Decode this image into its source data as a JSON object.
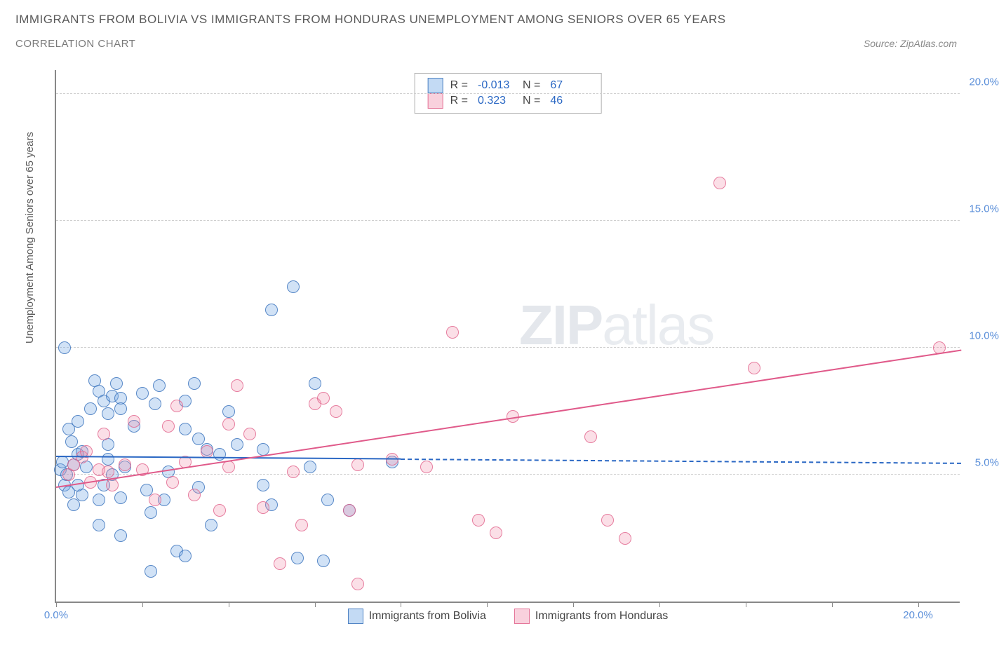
{
  "header": {
    "title": "IMMIGRANTS FROM BOLIVIA VS IMMIGRANTS FROM HONDURAS UNEMPLOYMENT AMONG SENIORS OVER 65 YEARS",
    "subtitle": "CORRELATION CHART",
    "source": "Source: ZipAtlas.com"
  },
  "chart": {
    "type": "scatter",
    "ylabel": "Unemployment Among Seniors over 65 years",
    "xlim": [
      0,
      21
    ],
    "ylim": [
      0,
      21
    ],
    "xticks_major": [
      0,
      2,
      4,
      6,
      8,
      10,
      12,
      14,
      16,
      18,
      20
    ],
    "xticks_labeled": [
      {
        "v": 0,
        "t": "0.0%"
      },
      {
        "v": 20,
        "t": "20.0%"
      }
    ],
    "yticks": [
      {
        "v": 5,
        "t": "5.0%"
      },
      {
        "v": 10,
        "t": "10.0%"
      },
      {
        "v": 15,
        "t": "15.0%"
      },
      {
        "v": 20,
        "t": "20.0%"
      }
    ],
    "grid_levels": [
      5,
      10,
      15,
      20
    ],
    "background_color": "#ffffff",
    "grid_color": "#cfcfcf",
    "axis_color": "#888888",
    "legend": {
      "rows": [
        {
          "swatch": "blue",
          "r_label": "R =",
          "r_value": "-0.013",
          "n_label": "N =",
          "n_value": "67"
        },
        {
          "swatch": "pink",
          "r_label": "R =",
          "r_value": "0.323",
          "n_label": "N =",
          "n_value": "46"
        }
      ]
    },
    "bottom_legend": [
      {
        "swatch": "blue",
        "label": "Immigrants from Bolivia"
      },
      {
        "swatch": "pink",
        "label": "Immigrants from Honduras"
      }
    ],
    "watermark": {
      "bold": "ZIP",
      "rest": "atlas"
    },
    "series": [
      {
        "name": "bolivia",
        "color": "#7aace6",
        "border": "#4278be",
        "marker_class": "blue",
        "trend": {
          "x1": 0,
          "y1": 5.8,
          "x2": 8,
          "y2": 5.7,
          "extend_to": 21
        },
        "points": [
          [
            0.1,
            5.2
          ],
          [
            0.2,
            4.6
          ],
          [
            0.15,
            5.5
          ],
          [
            0.25,
            5.0
          ],
          [
            0.3,
            4.3
          ],
          [
            0.35,
            6.3
          ],
          [
            0.4,
            5.4
          ],
          [
            0.5,
            5.8
          ],
          [
            0.3,
            6.8
          ],
          [
            0.5,
            7.1
          ],
          [
            0.6,
            4.2
          ],
          [
            0.4,
            3.8
          ],
          [
            0.5,
            4.6
          ],
          [
            0.7,
            5.3
          ],
          [
            0.8,
            7.6
          ],
          [
            0.6,
            5.9
          ],
          [
            0.2,
            10.0
          ],
          [
            0.9,
            8.7
          ],
          [
            1.0,
            8.3
          ],
          [
            1.1,
            7.9
          ],
          [
            1.2,
            7.4
          ],
          [
            1.0,
            4.0
          ],
          [
            1.1,
            4.6
          ],
          [
            1.3,
            5.0
          ],
          [
            1.4,
            8.6
          ],
          [
            1.3,
            8.1
          ],
          [
            1.2,
            6.2
          ],
          [
            1.0,
            3.0
          ],
          [
            1.5,
            8.0
          ],
          [
            1.5,
            7.6
          ],
          [
            1.6,
            5.3
          ],
          [
            1.5,
            4.1
          ],
          [
            1.5,
            2.6
          ],
          [
            1.2,
            5.6
          ],
          [
            1.8,
            6.9
          ],
          [
            2.0,
            8.2
          ],
          [
            2.1,
            4.4
          ],
          [
            2.2,
            3.5
          ],
          [
            2.4,
            8.5
          ],
          [
            2.5,
            4.0
          ],
          [
            2.3,
            7.8
          ],
          [
            2.6,
            5.1
          ],
          [
            2.2,
            1.2
          ],
          [
            2.8,
            2.0
          ],
          [
            3.0,
            6.8
          ],
          [
            3.0,
            7.9
          ],
          [
            3.0,
            1.8
          ],
          [
            3.3,
            6.4
          ],
          [
            3.3,
            4.5
          ],
          [
            3.2,
            8.6
          ],
          [
            3.5,
            6.0
          ],
          [
            3.8,
            5.8
          ],
          [
            3.6,
            3.0
          ],
          [
            4.0,
            7.5
          ],
          [
            4.2,
            6.2
          ],
          [
            4.8,
            6.0
          ],
          [
            4.8,
            4.6
          ],
          [
            5.0,
            11.5
          ],
          [
            5.0,
            3.8
          ],
          [
            5.5,
            12.4
          ],
          [
            5.6,
            1.7
          ],
          [
            5.9,
            5.3
          ],
          [
            6.0,
            8.6
          ],
          [
            6.2,
            1.6
          ],
          [
            6.3,
            4.0
          ],
          [
            6.8,
            3.6
          ],
          [
            7.8,
            5.5
          ]
        ]
      },
      {
        "name": "honduras",
        "color": "#f08caa",
        "border": "#e1648c",
        "marker_class": "pink",
        "trend": {
          "x1": 0,
          "y1": 4.6,
          "x2": 21,
          "y2": 10.0
        },
        "points": [
          [
            0.3,
            5.0
          ],
          [
            0.4,
            5.4
          ],
          [
            0.6,
            5.7
          ],
          [
            0.7,
            5.9
          ],
          [
            0.8,
            4.7
          ],
          [
            1.0,
            5.2
          ],
          [
            1.1,
            6.6
          ],
          [
            1.2,
            5.1
          ],
          [
            1.3,
            4.6
          ],
          [
            1.6,
            5.4
          ],
          [
            1.8,
            7.1
          ],
          [
            2.0,
            5.2
          ],
          [
            2.3,
            4.0
          ],
          [
            2.6,
            6.9
          ],
          [
            2.7,
            4.7
          ],
          [
            2.8,
            7.7
          ],
          [
            3.0,
            5.5
          ],
          [
            3.2,
            4.2
          ],
          [
            3.5,
            5.9
          ],
          [
            3.8,
            3.6
          ],
          [
            4.0,
            5.3
          ],
          [
            4.0,
            7.0
          ],
          [
            4.2,
            8.5
          ],
          [
            4.5,
            6.6
          ],
          [
            4.8,
            3.7
          ],
          [
            5.2,
            1.5
          ],
          [
            5.5,
            5.1
          ],
          [
            5.7,
            3.0
          ],
          [
            6.0,
            7.8
          ],
          [
            6.2,
            8.0
          ],
          [
            6.5,
            7.5
          ],
          [
            6.8,
            3.6
          ],
          [
            7.0,
            5.4
          ],
          [
            7.0,
            0.7
          ],
          [
            7.8,
            5.6
          ],
          [
            8.6,
            5.3
          ],
          [
            9.2,
            10.6
          ],
          [
            9.8,
            3.2
          ],
          [
            10.2,
            2.7
          ],
          [
            10.6,
            7.3
          ],
          [
            12.4,
            6.5
          ],
          [
            12.8,
            3.2
          ],
          [
            13.2,
            2.5
          ],
          [
            15.4,
            16.5
          ],
          [
            16.2,
            9.2
          ],
          [
            20.5,
            10.0
          ]
        ]
      }
    ]
  }
}
